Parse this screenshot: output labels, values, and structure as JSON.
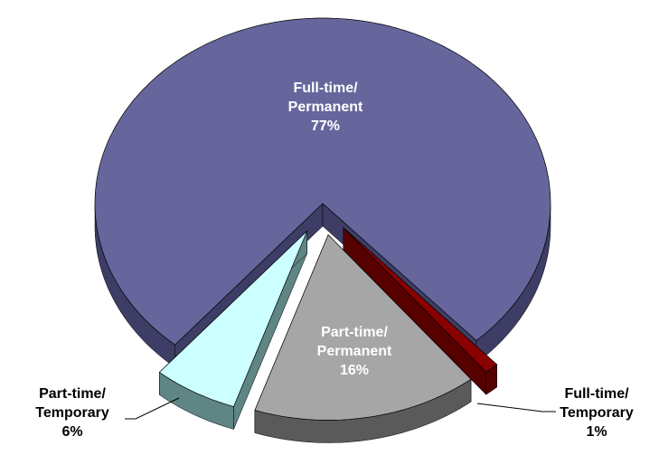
{
  "chart_data": {
    "type": "pie3d",
    "categories": [
      "Full-time/Permanent",
      "Full-time/Temporary",
      "Part-time/Permanent",
      "Part-time/Temporary"
    ],
    "values": [
      77,
      1,
      16,
      6
    ],
    "value_labels": [
      "77%",
      "1%",
      "16%",
      "6%"
    ],
    "colors": [
      "#66669c",
      "#8b0000",
      "#a6a6a6",
      "#ccffff"
    ],
    "side_colors": [
      "#3d3d66",
      "#560000",
      "#5a5a5a",
      "#5f8585"
    ]
  }
}
